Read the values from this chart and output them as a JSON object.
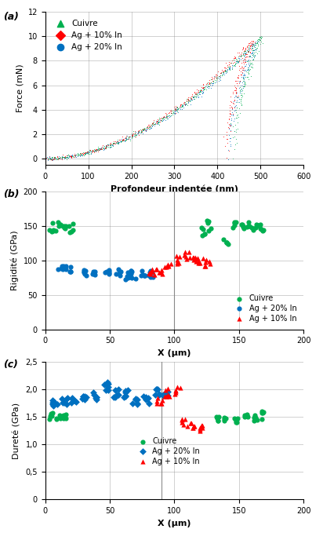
{
  "panel_a": {
    "xlabel": "Profondeur indentée (nm)",
    "ylabel": "Force (mN)",
    "xlim": [
      0,
      600
    ],
    "ylim": [
      -0.5,
      12
    ],
    "yticks": [
      0,
      2,
      4,
      6,
      8,
      10,
      12
    ],
    "xticks": [
      0,
      100,
      200,
      300,
      400,
      500,
      600
    ],
    "curves": {
      "cuivre": {
        "label": "Cuivre"
      },
      "ag10": {
        "label": "Ag + 10% In"
      },
      "ag20": {
        "label": "Ag + 20% In"
      }
    }
  },
  "panel_b": {
    "xlabel": "X (μm)",
    "ylabel": "Rigidité (GPa)",
    "xlim": [
      0,
      200
    ],
    "ylim": [
      0,
      200
    ],
    "yticks": [
      0,
      50,
      100,
      150,
      200
    ],
    "xticks": [
      0,
      50,
      100,
      150,
      200
    ],
    "vline": 100,
    "legend": {
      "cuivre": "Cuivre",
      "ag20": "Ag + 20% In",
      "ag10": "Ag + 10% In"
    }
  },
  "panel_c": {
    "xlabel": "X (μm)",
    "ylabel": "Dureté (GPa)",
    "xlim": [
      0,
      200
    ],
    "ylim": [
      0,
      2.5
    ],
    "yticks": [
      0,
      0.5,
      1.0,
      1.5,
      2.0,
      2.5
    ],
    "ytick_labels": [
      "0",
      "0,5",
      "1,0",
      "1,5",
      "2,0",
      "2,5"
    ],
    "xticks": [
      0,
      50,
      100,
      150,
      200
    ],
    "vline": 90,
    "legend": {
      "cuivre": "Cuivre",
      "ag20": "Ag + 20% In",
      "ag10": "Ag + 10% In"
    }
  },
  "colors": {
    "cuivre": "#00b050",
    "ag10": "#ff0000",
    "ag20": "#0070c0"
  }
}
